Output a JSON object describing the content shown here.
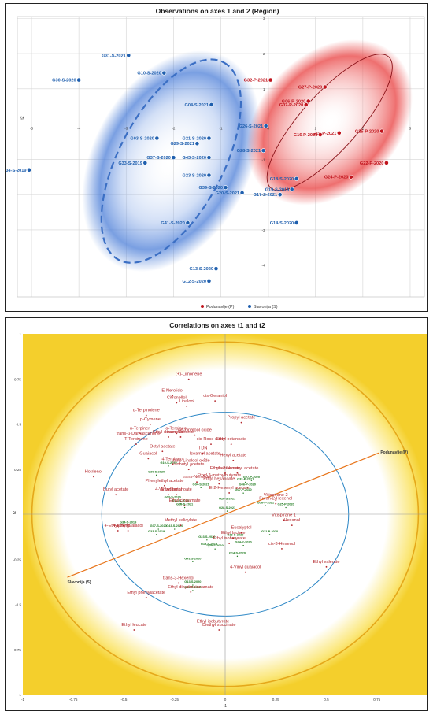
{
  "chart_data": [
    {
      "type": "scatter",
      "title": "Observations on axes 1 and 2 (Region)",
      "xlabel": "",
      "ylabel": "t2",
      "xlim": [
        -5.3,
        3.3
      ],
      "ylim": [
        -4.9,
        3.05
      ],
      "xticks": [
        "-5",
        "-4",
        "-3",
        "-2",
        "-1",
        "0",
        "1",
        "2",
        "3"
      ],
      "yticks": [
        "3",
        "2",
        "1",
        "-1",
        "-2",
        "-3",
        "-4"
      ],
      "grid": true,
      "legend_position": "bottom",
      "series": [
        {
          "name": "Podunavlje (P)",
          "color": "#c0141c",
          "points": [
            {
              "label": "G32-P-2021",
              "x": 0.05,
              "y": 1.25
            },
            {
              "label": "G27-P-2020",
              "x": 1.2,
              "y": 1.05
            },
            {
              "label": "G06-P-2020",
              "x": 0.85,
              "y": 0.65
            },
            {
              "label": "G07-P-2020",
              "x": 0.8,
              "y": 0.55
            },
            {
              "label": "G15-P-2021",
              "x": 1.5,
              "y": -0.25
            },
            {
              "label": "G16-P-2021",
              "x": 1.1,
              "y": -0.3
            },
            {
              "label": "G25-P-2020",
              "x": 2.4,
              "y": -0.2
            },
            {
              "label": "G22-P-2020",
              "x": 2.5,
              "y": -1.1
            },
            {
              "label": "G24-P-2020",
              "x": 1.75,
              "y": -1.5
            }
          ]
        },
        {
          "name": "Slavonija (S)",
          "color": "#1f5fae",
          "points": [
            {
              "label": "G31-S-2021",
              "x": -2.95,
              "y": 1.95
            },
            {
              "label": "G10-S-2020",
              "x": -2.2,
              "y": 1.45
            },
            {
              "label": "G30-S-2020",
              "x": -4.0,
              "y": 1.25
            },
            {
              "label": "G04-S-2021",
              "x": -1.2,
              "y": 0.55
            },
            {
              "label": "G26-S-2021",
              "x": -0.05,
              "y": -0.05
            },
            {
              "label": "G03-S-2020",
              "x": -2.35,
              "y": -0.4
            },
            {
              "label": "G21-S-2020",
              "x": -1.25,
              "y": -0.4
            },
            {
              "label": "G29-S-2021",
              "x": -1.5,
              "y": -0.55
            },
            {
              "label": "G28-S-2021",
              "x": -0.1,
              "y": -0.75
            },
            {
              "label": "G37-S-2020",
              "x": -2.0,
              "y": -0.95
            },
            {
              "label": "G43-S-2020",
              "x": -1.25,
              "y": -0.95
            },
            {
              "label": "G33-S-2019",
              "x": -2.6,
              "y": -1.1
            },
            {
              "label": "G34-S-2019",
              "x": -5.05,
              "y": -1.3
            },
            {
              "label": "G23-S-2020",
              "x": -1.25,
              "y": -1.45
            },
            {
              "label": "G18-S-2020",
              "x": 0.6,
              "y": -1.55
            },
            {
              "label": "G39-S-2020",
              "x": -0.9,
              "y": -1.8
            },
            {
              "label": "G19-S-2019",
              "x": 0.5,
              "y": -1.85
            },
            {
              "label": "G20-S-2021",
              "x": -0.55,
              "y": -1.95
            },
            {
              "label": "G17-S-2021",
              "x": 0.25,
              "y": -2.0
            },
            {
              "label": "G41-S-2020",
              "x": -1.7,
              "y": -2.8
            },
            {
              "label": "G14-S-2020",
              "x": 0.6,
              "y": -2.8
            },
            {
              "label": "G13-S-2020",
              "x": -1.1,
              "y": -4.1
            },
            {
              "label": "G12-S-2020",
              "x": -1.25,
              "y": -4.45
            }
          ]
        }
      ],
      "legend": [
        "Podunavlje (P)",
        "Slavonija (S)"
      ]
    },
    {
      "type": "scatter",
      "title": "Correlations on axes t1 and t2",
      "xlabel": "t1",
      "ylabel": "t2",
      "xlim": [
        -1,
        1
      ],
      "ylim": [
        -1,
        1
      ],
      "xticks": [
        "-1",
        "-0.75",
        "-0.5",
        "-0.25",
        "0",
        "0.25",
        "0.5",
        "0.75",
        "1"
      ],
      "yticks": [
        "1",
        "0.75",
        "0.5",
        "0.25",
        "-0.25",
        "-0.5",
        "-0.75",
        "-1"
      ],
      "region_line": {
        "start": {
          "label": "Slavonija (S)",
          "x": -0.78,
          "y": -0.35
        },
        "end": {
          "label": "Podunavlje (P)",
          "x": 0.76,
          "y": 0.34
        }
      },
      "variables": [
        {
          "label": "(+)-Limonene",
          "x": -0.18,
          "y": 0.77
        },
        {
          "label": "E-Nerolidol",
          "x": -0.26,
          "y": 0.68
        },
        {
          "label": "cis-Geraniol",
          "x": -0.05,
          "y": 0.65
        },
        {
          "label": "Citronellol",
          "x": -0.24,
          "y": 0.64
        },
        {
          "label": "Linalool",
          "x": -0.19,
          "y": 0.62
        },
        {
          "label": "α-Terpinolene",
          "x": -0.39,
          "y": 0.57
        },
        {
          "label": "Propyl acetate",
          "x": 0.08,
          "y": 0.53
        },
        {
          "label": "p-Cymene",
          "x": -0.37,
          "y": 0.52
        },
        {
          "label": "α-Terpineol",
          "x": -0.24,
          "y": 0.47
        },
        {
          "label": "cis-Linalool oxide",
          "x": -0.15,
          "y": 0.46
        },
        {
          "label": "Ethyl decanoate",
          "x": -0.28,
          "y": 0.45
        },
        {
          "label": "trans-Geraniol",
          "x": -0.22,
          "y": 0.45
        },
        {
          "label": "α-Terpinen",
          "x": -0.42,
          "y": 0.47
        },
        {
          "label": "trans-β-Damascenone",
          "x": -0.43,
          "y": 0.44
        },
        {
          "label": "T-Terpinene",
          "x": -0.44,
          "y": 0.41
        },
        {
          "label": "Ethyl octanoate",
          "x": 0.03,
          "y": 0.41
        },
        {
          "label": "cis-Rose oxide",
          "x": -0.07,
          "y": 0.41
        },
        {
          "label": "Octyl acetate",
          "x": -0.31,
          "y": 0.37
        },
        {
          "label": "Guaiacol",
          "x": -0.38,
          "y": 0.33
        },
        {
          "label": "TDN",
          "x": -0.11,
          "y": 0.36
        },
        {
          "label": "Isoamyl acetate",
          "x": -0.1,
          "y": 0.33
        },
        {
          "label": "Hexyl acetate",
          "x": 0.04,
          "y": 0.32
        },
        {
          "label": "4-Terpineol",
          "x": -0.26,
          "y": 0.3
        },
        {
          "label": "trans-Linalool oxide",
          "x": -0.17,
          "y": 0.29
        },
        {
          "label": "Hotrienol",
          "x": -0.65,
          "y": 0.23
        },
        {
          "label": "Isobutyl acetate",
          "x": -0.18,
          "y": 0.27
        },
        {
          "label": "Ethyl octanoate",
          "x": 0.0,
          "y": 0.25
        },
        {
          "label": "cis-3-Hexenyl acetate",
          "x": 0.06,
          "y": 0.25
        },
        {
          "label": "Ethyl 2-methylbutyrate",
          "x": -0.03,
          "y": 0.21
        },
        {
          "label": "trans-Nerolidol",
          "x": -0.14,
          "y": 0.2
        },
        {
          "label": "Ethyl hexanoate",
          "x": -0.03,
          "y": 0.19
        },
        {
          "label": "Phenylethyl acetate",
          "x": -0.3,
          "y": 0.18
        },
        {
          "label": "Butyl acetate",
          "x": -0.54,
          "y": 0.13
        },
        {
          "label": "4-Vinylphenol",
          "x": -0.28,
          "y": 0.13
        },
        {
          "label": "Ethyl butanoate",
          "x": -0.24,
          "y": 0.13
        },
        {
          "label": "E-2-Hexenyl acetate",
          "x": 0.02,
          "y": 0.14
        },
        {
          "label": "Vitispirane 2",
          "x": 0.25,
          "y": 0.1
        },
        {
          "label": "Furan-2-Hexenol",
          "x": 0.25,
          "y": 0.08
        },
        {
          "label": "Ethyl cinnamate",
          "x": -0.2,
          "y": 0.07
        },
        {
          "label": "Vitispirane 1",
          "x": 0.29,
          "y": -0.01
        },
        {
          "label": "Hexanol",
          "x": 0.33,
          "y": -0.04
        },
        {
          "label": "Methyl salicylate",
          "x": -0.22,
          "y": -0.04
        },
        {
          "label": "4-Ethylphenol",
          "x": -0.53,
          "y": -0.07
        },
        {
          "label": "4-Ethylguaiacol",
          "x": -0.48,
          "y": -0.07
        },
        {
          "label": "Eucalyptol",
          "x": 0.08,
          "y": -0.08
        },
        {
          "label": "Ethyl lactate",
          "x": 0.04,
          "y": -0.11
        },
        {
          "label": "Ethyl isobutyrate",
          "x": 0.02,
          "y": -0.14
        },
        {
          "label": "cis-3-Hexenol",
          "x": 0.28,
          "y": -0.17
        },
        {
          "label": "Ethyl valerate",
          "x": 0.5,
          "y": -0.27
        },
        {
          "label": "4-Vinyl guaiacol",
          "x": 0.1,
          "y": -0.3
        },
        {
          "label": "trans-3-Hexenol",
          "x": -0.23,
          "y": -0.36
        },
        {
          "label": "Ethyl dihydrocinnamate",
          "x": -0.17,
          "y": -0.41
        },
        {
          "label": "Ethyl phenylacetate",
          "x": -0.39,
          "y": -0.44
        },
        {
          "label": "Ethyl isobutyrate",
          "x": -0.06,
          "y": -0.6
        },
        {
          "label": "Ethyl leucate",
          "x": -0.45,
          "y": -0.62
        },
        {
          "label": "Diethyl succinate",
          "x": -0.03,
          "y": -0.62
        }
      ],
      "sample_labels": [
        {
          "label": "G10-S-2020",
          "x": -0.28,
          "y": 0.28
        },
        {
          "label": "G30-S-2020",
          "x": -0.34,
          "y": 0.23
        },
        {
          "label": "G04-S-2021",
          "x": -0.12,
          "y": 0.16
        },
        {
          "label": "G32-P-2021",
          "x": 0.1,
          "y": 0.19
        },
        {
          "label": "G27-P-2020",
          "x": 0.13,
          "y": 0.2
        },
        {
          "label": "G06-P-2020",
          "x": 0.11,
          "y": 0.16
        },
        {
          "label": "G07-P-2020",
          "x": 0.09,
          "y": 0.13
        },
        {
          "label": "G03-S-2020",
          "x": -0.26,
          "y": 0.09
        },
        {
          "label": "G21-S-2020",
          "x": -0.22,
          "y": 0.07
        },
        {
          "label": "G29-S-2021",
          "x": -0.2,
          "y": 0.05
        },
        {
          "label": "G26-S-2021",
          "x": 0.01,
          "y": 0.08
        },
        {
          "label": "G16-P-2021",
          "x": 0.2,
          "y": 0.06
        },
        {
          "label": "G25-P-2020",
          "x": 0.3,
          "y": 0.05
        },
        {
          "label": "G28-S-2021",
          "x": 0.01,
          "y": 0.03
        },
        {
          "label": "G34-S-2019",
          "x": -0.48,
          "y": -0.05
        },
        {
          "label": "G37-S-2020",
          "x": -0.33,
          "y": -0.07
        },
        {
          "label": "G43-S-2020",
          "x": -0.25,
          "y": -0.07
        },
        {
          "label": "G33-S-2019",
          "x": -0.34,
          "y": -0.1
        },
        {
          "label": "G22-P-2020",
          "x": 0.22,
          "y": -0.1
        },
        {
          "label": "G23-S-2020",
          "x": -0.09,
          "y": -0.13
        },
        {
          "label": "G18-S-2020",
          "x": 0.05,
          "y": -0.12
        },
        {
          "label": "G24-P-2020",
          "x": 0.09,
          "y": -0.16
        },
        {
          "label": "G19-S-2019",
          "x": -0.08,
          "y": -0.17
        },
        {
          "label": "G39-S-2020",
          "x": -0.05,
          "y": -0.18
        },
        {
          "label": "G14-S-2020",
          "x": 0.06,
          "y": -0.22
        },
        {
          "label": "G41-S-2020",
          "x": -0.16,
          "y": -0.25
        },
        {
          "label": "G13-S-2020",
          "x": -0.16,
          "y": -0.38
        },
        {
          "label": "G12-S-2020",
          "x": -0.16,
          "y": -0.41
        }
      ]
    }
  ]
}
